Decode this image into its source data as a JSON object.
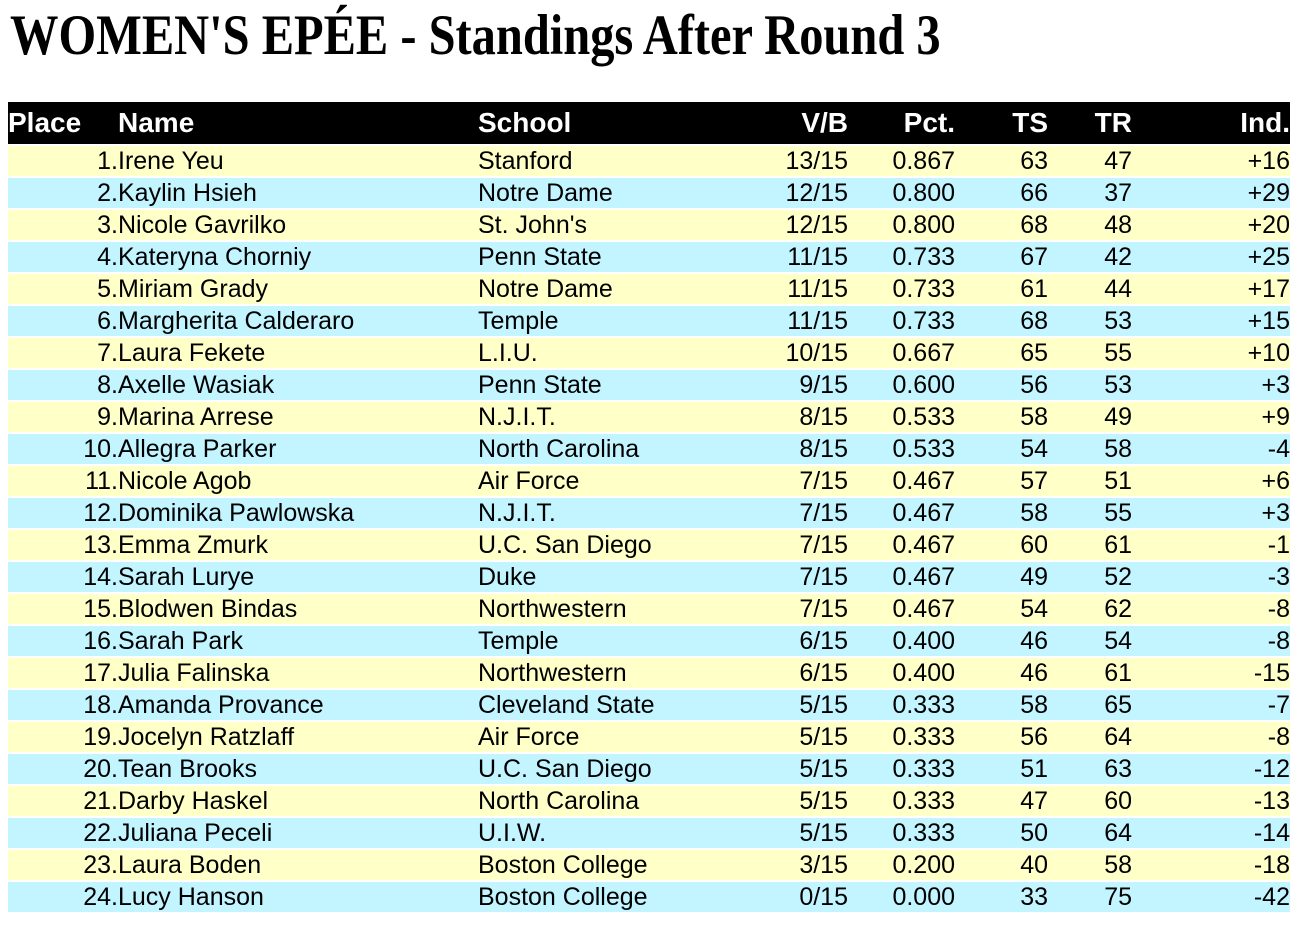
{
  "title": "WOMEN'S EPÉE - Standings After Round 3",
  "table": {
    "columns": [
      {
        "key": "place",
        "label": "Place"
      },
      {
        "key": "name",
        "label": "Name"
      },
      {
        "key": "school",
        "label": "School"
      },
      {
        "key": "vb",
        "label": "V/B"
      },
      {
        "key": "pct",
        "label": "Pct."
      },
      {
        "key": "ts",
        "label": "TS"
      },
      {
        "key": "tr",
        "label": "TR"
      },
      {
        "key": "ind",
        "label": "Ind."
      }
    ],
    "rows": [
      {
        "place": "1.",
        "name": "Irene Yeu",
        "school": "Stanford",
        "vb": "13/15",
        "pct": "0.867",
        "ts": "63",
        "tr": "47",
        "ind": "+16"
      },
      {
        "place": "2.",
        "name": "Kaylin Hsieh",
        "school": "Notre Dame",
        "vb": "12/15",
        "pct": "0.800",
        "ts": "66",
        "tr": "37",
        "ind": "+29"
      },
      {
        "place": "3.",
        "name": "Nicole Gavrilko",
        "school": "St. John's",
        "vb": "12/15",
        "pct": "0.800",
        "ts": "68",
        "tr": "48",
        "ind": "+20"
      },
      {
        "place": "4.",
        "name": "Kateryna Chorniy",
        "school": "Penn State",
        "vb": "11/15",
        "pct": "0.733",
        "ts": "67",
        "tr": "42",
        "ind": "+25"
      },
      {
        "place": "5.",
        "name": "Miriam Grady",
        "school": "Notre Dame",
        "vb": "11/15",
        "pct": "0.733",
        "ts": "61",
        "tr": "44",
        "ind": "+17"
      },
      {
        "place": "6.",
        "name": "Margherita Calderaro",
        "school": "Temple",
        "vb": "11/15",
        "pct": "0.733",
        "ts": "68",
        "tr": "53",
        "ind": "+15"
      },
      {
        "place": "7.",
        "name": "Laura Fekete",
        "school": "L.I.U.",
        "vb": "10/15",
        "pct": "0.667",
        "ts": "65",
        "tr": "55",
        "ind": "+10"
      },
      {
        "place": "8.",
        "name": "Axelle Wasiak",
        "school": "Penn State",
        "vb": "9/15",
        "pct": "0.600",
        "ts": "56",
        "tr": "53",
        "ind": "+3"
      },
      {
        "place": "9.",
        "name": "Marina Arrese",
        "school": "N.J.I.T.",
        "vb": "8/15",
        "pct": "0.533",
        "ts": "58",
        "tr": "49",
        "ind": "+9"
      },
      {
        "place": "10.",
        "name": "Allegra Parker",
        "school": "North Carolina",
        "vb": "8/15",
        "pct": "0.533",
        "ts": "54",
        "tr": "58",
        "ind": "-4"
      },
      {
        "place": "11.",
        "name": "Nicole Agob",
        "school": "Air Force",
        "vb": "7/15",
        "pct": "0.467",
        "ts": "57",
        "tr": "51",
        "ind": "+6"
      },
      {
        "place": "12.",
        "name": "Dominika Pawlowska",
        "school": "N.J.I.T.",
        "vb": "7/15",
        "pct": "0.467",
        "ts": "58",
        "tr": "55",
        "ind": "+3"
      },
      {
        "place": "13.",
        "name": "Emma Zmurk",
        "school": "U.C. San Diego",
        "vb": "7/15",
        "pct": "0.467",
        "ts": "60",
        "tr": "61",
        "ind": "-1"
      },
      {
        "place": "14.",
        "name": "Sarah Lurye",
        "school": "Duke",
        "vb": "7/15",
        "pct": "0.467",
        "ts": "49",
        "tr": "52",
        "ind": "-3"
      },
      {
        "place": "15.",
        "name": "Blodwen Bindas",
        "school": "Northwestern",
        "vb": "7/15",
        "pct": "0.467",
        "ts": "54",
        "tr": "62",
        "ind": "-8"
      },
      {
        "place": "16.",
        "name": "Sarah Park",
        "school": "Temple",
        "vb": "6/15",
        "pct": "0.400",
        "ts": "46",
        "tr": "54",
        "ind": "-8"
      },
      {
        "place": "17.",
        "name": "Julia Falinska",
        "school": "Northwestern",
        "vb": "6/15",
        "pct": "0.400",
        "ts": "46",
        "tr": "61",
        "ind": "-15"
      },
      {
        "place": "18.",
        "name": "Amanda Provance",
        "school": "Cleveland State",
        "vb": "5/15",
        "pct": "0.333",
        "ts": "58",
        "tr": "65",
        "ind": "-7"
      },
      {
        "place": "19.",
        "name": "Jocelyn Ratzlaff",
        "school": "Air Force",
        "vb": "5/15",
        "pct": "0.333",
        "ts": "56",
        "tr": "64",
        "ind": "-8"
      },
      {
        "place": "20.",
        "name": "Tean Brooks",
        "school": "U.C. San Diego",
        "vb": "5/15",
        "pct": "0.333",
        "ts": "51",
        "tr": "63",
        "ind": "-12"
      },
      {
        "place": "21.",
        "name": "Darby Haskel",
        "school": "North Carolina",
        "vb": "5/15",
        "pct": "0.333",
        "ts": "47",
        "tr": "60",
        "ind": "-13"
      },
      {
        "place": "22.",
        "name": "Juliana Peceli",
        "school": "U.I.W.",
        "vb": "5/15",
        "pct": "0.333",
        "ts": "50",
        "tr": "64",
        "ind": "-14"
      },
      {
        "place": "23.",
        "name": "Laura Boden",
        "school": "Boston College",
        "vb": "3/15",
        "pct": "0.200",
        "ts": "40",
        "tr": "58",
        "ind": "-18"
      },
      {
        "place": "24.",
        "name": "Lucy Hanson",
        "school": "Boston College",
        "vb": "0/15",
        "pct": "0.000",
        "ts": "33",
        "tr": "75",
        "ind": "-42"
      }
    ]
  },
  "colors": {
    "header_bg": "#000000",
    "header_text": "#FFFFFF",
    "row_yellow": "#FFFFC8",
    "row_cyan": "#C2F5FF",
    "row_separator": "#FFFFFF"
  }
}
